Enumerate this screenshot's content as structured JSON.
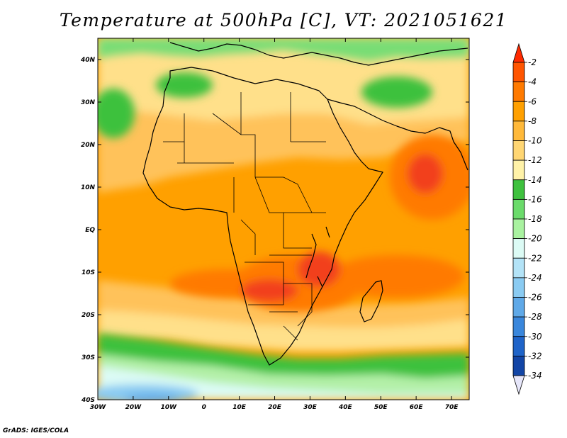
{
  "title": "Temperature at 500hPa [C], VT: 2021051621",
  "credit": "GrADS: IGES/COLA",
  "map": {
    "projection": "latlon",
    "lon_range": [
      -30,
      75
    ],
    "lat_range": [
      -40,
      45
    ],
    "lat_labels": [
      {
        "lat": 40,
        "text": "40N"
      },
      {
        "lat": 30,
        "text": "30N"
      },
      {
        "lat": 20,
        "text": "20N"
      },
      {
        "lat": 10,
        "text": "10N"
      },
      {
        "lat": 0,
        "text": "EQ"
      },
      {
        "lat": -10,
        "text": "10S"
      },
      {
        "lat": -20,
        "text": "20S"
      },
      {
        "lat": -30,
        "text": "30S"
      },
      {
        "lat": -40,
        "text": "40S"
      }
    ],
    "lon_labels": [
      {
        "lon": -30,
        "text": "30W"
      },
      {
        "lon": -20,
        "text": "20W"
      },
      {
        "lon": -10,
        "text": "10W"
      },
      {
        "lon": 0,
        "text": "0"
      },
      {
        "lon": 10,
        "text": "10E"
      },
      {
        "lon": 20,
        "text": "20E"
      },
      {
        "lon": 30,
        "text": "30E"
      },
      {
        "lon": 40,
        "text": "40E"
      },
      {
        "lon": 50,
        "text": "50E"
      },
      {
        "lon": 60,
        "text": "60E"
      },
      {
        "lon": 70,
        "text": "70E"
      }
    ]
  },
  "colorbar": {
    "levels": [
      {
        "label": "-2",
        "color": "#ff5500"
      },
      {
        "label": "-4",
        "color": "#ff7a00"
      },
      {
        "label": "-6",
        "color": "#ffa000"
      },
      {
        "label": "-8",
        "color": "#ffb93a"
      },
      {
        "label": "-10",
        "color": "#ffd673"
      },
      {
        "label": "-12",
        "color": "#fff2a8"
      },
      {
        "label": "-14",
        "color": "#3ec13e"
      },
      {
        "label": "-16",
        "color": "#6bdb6b"
      },
      {
        "label": "-18",
        "color": "#a9f2a0"
      },
      {
        "label": "-20",
        "color": "#dcfbf5"
      },
      {
        "label": "-22",
        "color": "#b3e3f7"
      },
      {
        "label": "-24",
        "color": "#8acbf2"
      },
      {
        "label": "-26",
        "color": "#5fa9e8"
      },
      {
        "label": "-28",
        "color": "#3a87dc"
      },
      {
        "label": "-30",
        "color": "#1f64c9"
      },
      {
        "label": "-32",
        "color": "#1245a6"
      },
      {
        "label": "-34",
        "color": "#0a1a6e"
      }
    ],
    "top_extend_color": "#ff2a00",
    "bottom_extend_color": "#e6e6fa"
  },
  "colors": {
    "warmest": "#f2401a",
    "warm": "#ff7a00",
    "mid": "#ffa000",
    "light_orange": "#ffc25a",
    "pale": "#ffe08a",
    "green": "#3ec13e",
    "light_green": "#78dd74",
    "pale_green": "#b4f0a8",
    "cyan": "#dcfbf5",
    "blue": "#8acbf2",
    "deep_blue": "#5fa9e8"
  }
}
